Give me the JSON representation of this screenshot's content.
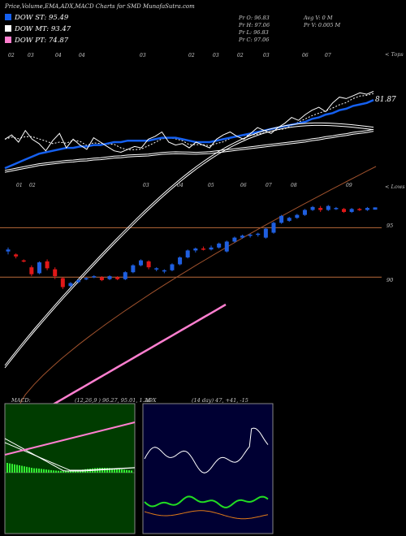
{
  "header": {
    "title": "Price,Volume,EMA,ADX,MACD Charts for SMD MunafaSutra.com"
  },
  "legend": [
    {
      "label": "DOW ST: 95.49",
      "color": "#1560f0"
    },
    {
      "label": "DOW MT: 93.47",
      "color": "#ffffff"
    },
    {
      "label": "DOW PT: 74.87",
      "color": "#ff7fd0"
    }
  ],
  "ohlc": {
    "open": "Pr   O: 96.83",
    "high": "Pr   H: 97.06",
    "low": "Pr   L: 96.83",
    "close": "Pr   C: 97.06"
  },
  "volume": {
    "avg": "Avg V: 0  M",
    "current": "Pr   V: 0.005 M"
  },
  "top_panel": {
    "right_tag": "< Tops",
    "price_label": "81.87",
    "date_labels": [
      "02",
      "03",
      "04",
      "04",
      "03",
      "02",
      "03",
      "02",
      "03",
      "06",
      "07"
    ]
  },
  "candle_panel": {
    "right_tag": "< Lows",
    "date_labels": [
      "01",
      "02",
      "03",
      "04",
      "05",
      "06",
      "07",
      "08",
      "09"
    ],
    "level_labels": [
      "95",
      "90"
    ]
  },
  "macd_panel": {
    "title": "MACD:",
    "values": "(12,26,9 ) 96.27,  95.01,  1.26"
  },
  "adx_panel": {
    "title": "ADX",
    "values": "(14  day)  47,  +41,  -15"
  },
  "colors": {
    "up_candle": "#1f5fe0",
    "down_candle": "#e01818",
    "ema_short": "#1560f0",
    "ema_long": "#a0522d",
    "dow_pt": "#ff7fd0",
    "macd_bg": "#003c00",
    "adx_bg": "#000033"
  },
  "chart_data": [
    {
      "type": "line",
      "name": "tops",
      "series": [
        {
          "name": "price",
          "values": [
            30,
            33,
            28,
            36,
            30,
            27,
            22,
            29,
            34,
            24,
            30,
            26,
            23,
            31,
            28,
            25,
            22,
            21,
            23,
            25,
            24,
            30,
            32,
            35,
            28,
            26,
            27,
            24,
            28,
            26,
            24,
            30,
            33,
            35,
            32,
            30,
            34,
            38,
            36,
            34,
            38,
            41,
            45,
            43,
            47,
            50,
            52,
            49,
            55,
            59,
            58,
            60,
            62,
            61,
            63
          ]
        },
        {
          "name": "ema-fast",
          "values": [
            10,
            12,
            14,
            16,
            18,
            20,
            21,
            22,
            23,
            24,
            24,
            25,
            25,
            26,
            26,
            27,
            28,
            28,
            29,
            29,
            29,
            29,
            30,
            31,
            31,
            31,
            30,
            29,
            28,
            28,
            28,
            29,
            30,
            31,
            32,
            33,
            34,
            35,
            36,
            37,
            38,
            39,
            40,
            41,
            42,
            44,
            45,
            47,
            48,
            50,
            51,
            53,
            54,
            55,
            57
          ]
        }
      ]
    },
    {
      "type": "bar",
      "name": "candles",
      "ohlc": [
        {
          "o": 92.6,
          "h": 93.0,
          "l": 92.3,
          "c": 92.8
        },
        {
          "o": 92.3,
          "h": 92.4,
          "l": 91.9,
          "c": 92.1
        },
        {
          "o": 91.7,
          "h": 91.8,
          "l": 91.5,
          "c": 91.6
        },
        {
          "o": 91.0,
          "h": 91.2,
          "l": 90.1,
          "c": 90.3
        },
        {
          "o": 90.4,
          "h": 91.6,
          "l": 90.3,
          "c": 91.5
        },
        {
          "o": 91.6,
          "h": 91.8,
          "l": 90.7,
          "c": 90.9
        },
        {
          "o": 90.8,
          "h": 91.0,
          "l": 89.8,
          "c": 90.1
        },
        {
          "o": 89.9,
          "h": 90.0,
          "l": 88.8,
          "c": 89.0
        },
        {
          "o": 89.1,
          "h": 89.5,
          "l": 89.0,
          "c": 89.4
        },
        {
          "o": 89.5,
          "h": 89.8,
          "l": 89.4,
          "c": 89.7
        },
        {
          "o": 89.8,
          "h": 90.0,
          "l": 89.7,
          "c": 89.9
        },
        {
          "o": 90.0,
          "h": 90.2,
          "l": 89.9,
          "c": 90.1
        },
        {
          "o": 90.0,
          "h": 90.1,
          "l": 89.6,
          "c": 89.7
        },
        {
          "o": 89.8,
          "h": 90.2,
          "l": 89.7,
          "c": 90.1
        },
        {
          "o": 90.0,
          "h": 90.1,
          "l": 89.7,
          "c": 89.8
        },
        {
          "o": 89.8,
          "h": 90.6,
          "l": 89.7,
          "c": 90.5
        },
        {
          "o": 90.5,
          "h": 91.3,
          "l": 90.4,
          "c": 91.2
        },
        {
          "o": 91.2,
          "h": 91.8,
          "l": 91.1,
          "c": 91.7
        },
        {
          "o": 91.6,
          "h": 91.7,
          "l": 90.8,
          "c": 91.0
        },
        {
          "o": 90.8,
          "h": 91.0,
          "l": 90.6,
          "c": 90.9
        },
        {
          "o": 90.6,
          "h": 90.8,
          "l": 90.4,
          "c": 90.7
        },
        {
          "o": 90.7,
          "h": 91.4,
          "l": 90.6,
          "c": 91.3
        },
        {
          "o": 91.3,
          "h": 92.1,
          "l": 91.2,
          "c": 92.0
        },
        {
          "o": 92.0,
          "h": 92.8,
          "l": 91.9,
          "c": 92.7
        },
        {
          "o": 92.7,
          "h": 93.0,
          "l": 92.5,
          "c": 92.9
        },
        {
          "o": 92.9,
          "h": 93.1,
          "l": 92.7,
          "c": 92.8
        },
        {
          "o": 92.8,
          "h": 93.2,
          "l": 92.7,
          "c": 93.0
        },
        {
          "o": 93.0,
          "h": 93.5,
          "l": 92.9,
          "c": 93.4
        },
        {
          "o": 92.6,
          "h": 93.7,
          "l": 92.5,
          "c": 93.6
        },
        {
          "o": 93.6,
          "h": 94.1,
          "l": 93.5,
          "c": 94.0
        },
        {
          "o": 94.0,
          "h": 94.3,
          "l": 93.9,
          "c": 94.2
        },
        {
          "o": 94.2,
          "h": 94.4,
          "l": 94.0,
          "c": 94.3
        },
        {
          "o": 94.3,
          "h": 94.5,
          "l": 94.1,
          "c": 94.4
        },
        {
          "o": 94.0,
          "h": 95.0,
          "l": 93.9,
          "c": 94.9
        },
        {
          "o": 94.5,
          "h": 95.6,
          "l": 94.4,
          "c": 95.5
        },
        {
          "o": 95.5,
          "h": 96.3,
          "l": 95.4,
          "c": 96.2
        },
        {
          "o": 95.7,
          "h": 96.1,
          "l": 95.6,
          "c": 96.0
        },
        {
          "o": 96.0,
          "h": 96.4,
          "l": 95.9,
          "c": 96.3
        },
        {
          "o": 96.3,
          "h": 96.9,
          "l": 96.2,
          "c": 96.8
        },
        {
          "o": 96.8,
          "h": 97.2,
          "l": 96.7,
          "c": 97.1
        },
        {
          "o": 97.0,
          "h": 97.2,
          "l": 96.6,
          "c": 96.8
        },
        {
          "o": 96.8,
          "h": 97.3,
          "l": 96.7,
          "c": 97.2
        },
        {
          "o": 96.9,
          "h": 97.1,
          "l": 96.8,
          "c": 97.0
        },
        {
          "o": 96.9,
          "h": 97.0,
          "l": 96.5,
          "c": 96.6
        },
        {
          "o": 96.6,
          "h": 97.0,
          "l": 96.5,
          "c": 96.9
        },
        {
          "o": 96.9,
          "h": 97.0,
          "l": 96.7,
          "c": 96.8
        },
        {
          "o": 96.8,
          "h": 97.1,
          "l": 96.7,
          "c": 97.0
        },
        {
          "o": 96.83,
          "h": 97.06,
          "l": 96.83,
          "c": 97.06
        }
      ],
      "levels": [
        95,
        90
      ]
    }
  ]
}
